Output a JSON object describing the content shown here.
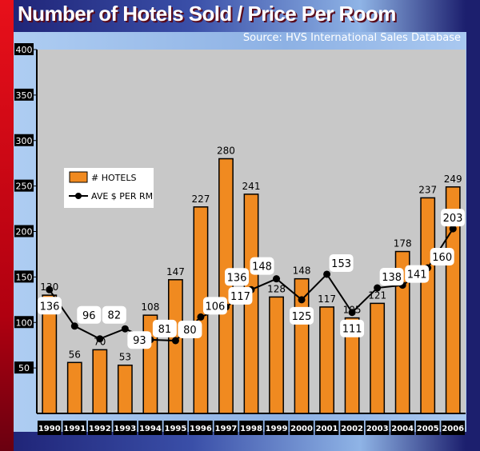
{
  "chart_data": {
    "type": "bar",
    "title": "Number of Hotels Sold / Price Per Room",
    "subtitle": "Source: HVS International Sales Database",
    "xlabel": "",
    "ylabel": "",
    "ylim": [
      0,
      400
    ],
    "yticks": [
      50,
      100,
      150,
      200,
      250,
      300,
      350,
      400
    ],
    "categories": [
      "1990",
      "1991",
      "1992",
      "1993",
      "1994",
      "1995",
      "1996",
      "1997",
      "1998",
      "1999",
      "2000",
      "2001",
      "2002",
      "2003",
      "2004",
      "2005",
      "2006"
    ],
    "series": [
      {
        "name": "# HOTELS",
        "type": "bar",
        "color": "#f08a20",
        "values": [
          130,
          56,
          70,
          53,
          108,
          147,
          227,
          280,
          241,
          128,
          148,
          117,
          105,
          121,
          178,
          237,
          249
        ]
      },
      {
        "name": "AVE $ PER RM",
        "type": "line",
        "color": "#000000",
        "values": [
          136,
          96,
          82,
          93,
          81,
          80,
          106,
          117,
          136,
          148,
          125,
          153,
          111,
          138,
          141,
          160,
          203
        ]
      }
    ],
    "legend": "upper-left",
    "grid": false
  }
}
